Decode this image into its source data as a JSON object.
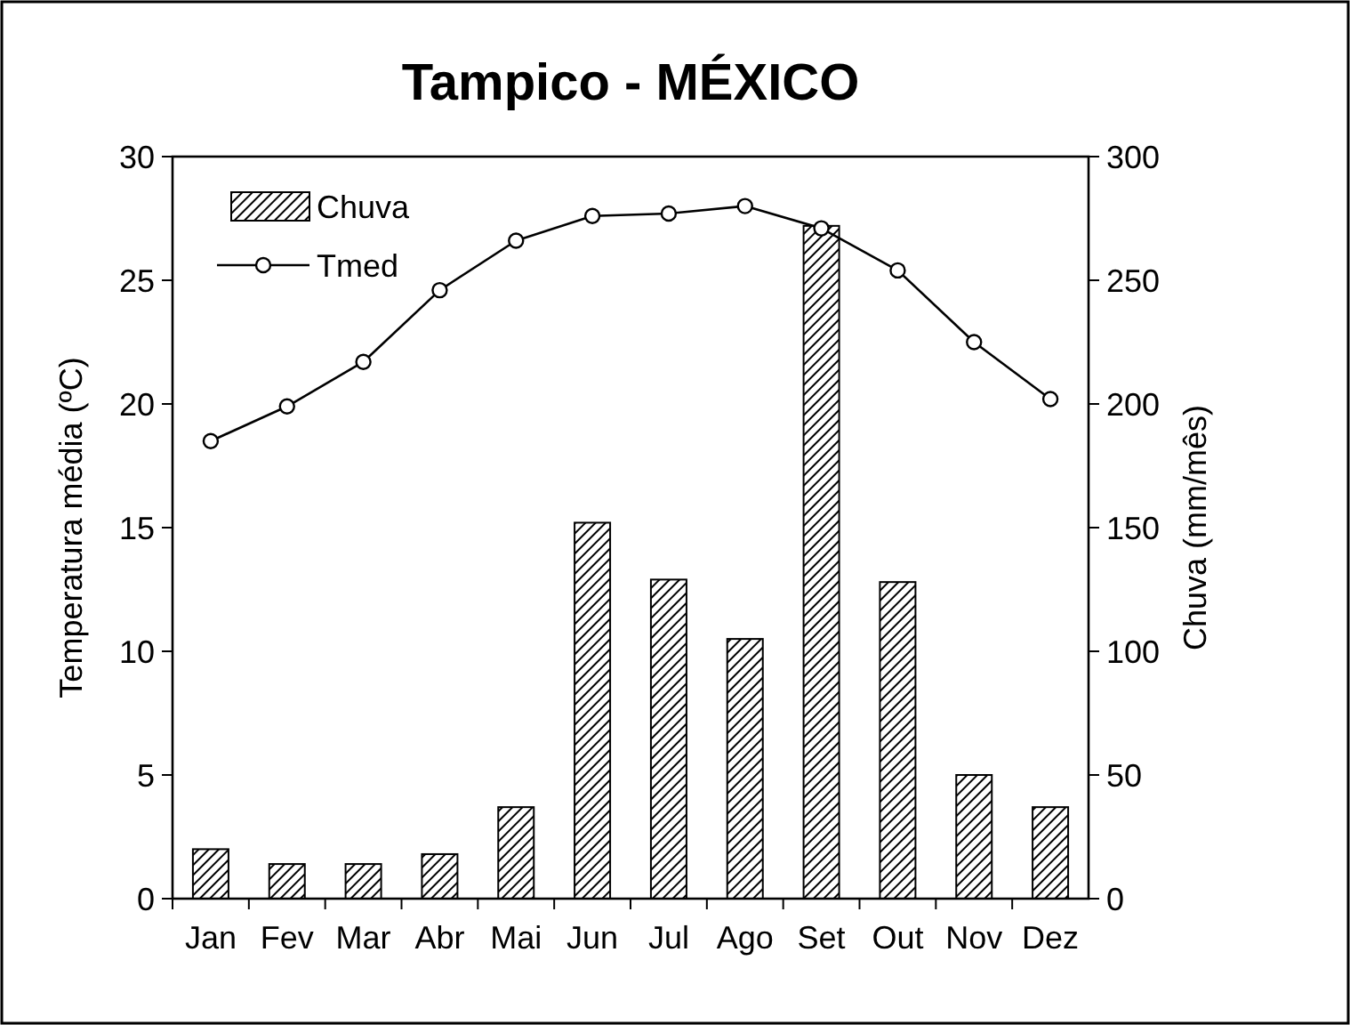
{
  "chart_data": {
    "type": "bar",
    "title": "Tampico - MÉXICO",
    "ylabel": "Temperatura média (ºC)",
    "y2label": "Chuva (mm/mês)",
    "categories": [
      "Jan",
      "Fev",
      "Mar",
      "Abr",
      "Mai",
      "Jun",
      "Jul",
      "Ago",
      "Set",
      "Out",
      "Nov",
      "Dez"
    ],
    "series": [
      {
        "name": "Chuva",
        "axis": "y2",
        "color": "#000000",
        "values": [
          20,
          14,
          14,
          18,
          37,
          152,
          129,
          105,
          272,
          128,
          50,
          37
        ]
      },
      {
        "name": "Tmed",
        "type": "line",
        "axis": "y",
        "color": "#000000",
        "marker": "circle",
        "values": [
          18.5,
          19.9,
          21.7,
          24.6,
          26.6,
          27.6,
          27.7,
          28.0,
          27.1,
          25.4,
          22.5,
          20.2
        ]
      }
    ],
    "ylim": [
      0,
      30
    ],
    "yticks": [
      0,
      5,
      10,
      15,
      20,
      25,
      30
    ],
    "y2lim": [
      0,
      300
    ],
    "y2ticks": [
      0,
      50,
      100,
      150,
      200,
      250,
      300
    ],
    "legend": "top left",
    "grid": false
  }
}
